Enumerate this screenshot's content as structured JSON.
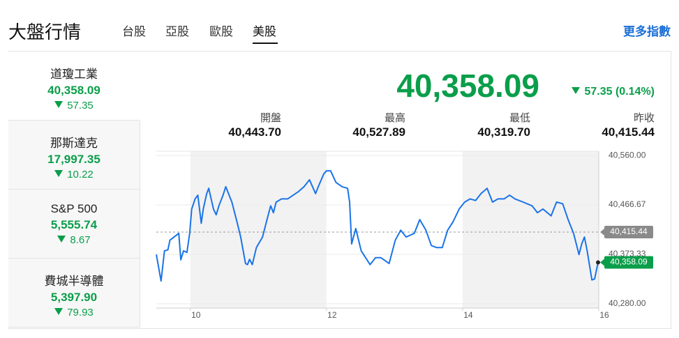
{
  "header": {
    "title": "大盤行情",
    "tabs": [
      "台股",
      "亞股",
      "歐股",
      "美股"
    ],
    "active_tab": 3,
    "more": "更多指數"
  },
  "indices": [
    {
      "name": "道瓊工業",
      "value": "40,358.09",
      "change": "57.35"
    },
    {
      "name": "那斯達克",
      "value": "17,997.35",
      "change": "10.22"
    },
    {
      "name": "S&P 500",
      "value": "5,555.74",
      "change": "8.67"
    },
    {
      "name": "費城半導體",
      "value": "5,397.90",
      "change": "79.93"
    }
  ],
  "selected_index": 0,
  "quote": {
    "price": "40,358.09",
    "change": "57.35 (0.14%)",
    "stats": [
      {
        "label": "開盤",
        "value": "40,443.70"
      },
      {
        "label": "最高",
        "value": "40,527.89"
      },
      {
        "label": "最低",
        "value": "40,319.70"
      },
      {
        "label": "昨收",
        "value": "40,415.44"
      }
    ]
  },
  "chart_data": {
    "type": "line",
    "x": [
      9.5,
      9.57,
      9.62,
      9.67,
      9.7,
      9.76,
      9.83,
      9.86,
      9.9,
      9.95,
      9.99,
      10.02,
      10.07,
      10.11,
      10.16,
      10.19,
      10.24,
      10.27,
      10.34,
      10.38,
      10.42,
      10.48,
      10.52,
      10.61,
      10.69,
      10.74,
      10.81,
      10.84,
      10.87,
      10.91,
      10.97,
      11.06,
      11.14,
      11.18,
      11.22,
      11.26,
      11.34,
      11.43,
      11.51,
      11.59,
      11.67,
      11.75,
      11.84,
      11.88,
      11.96,
      12.0,
      12.06,
      12.14,
      12.23,
      12.31,
      12.34,
      12.37,
      12.43,
      12.51,
      12.59,
      12.64,
      12.72,
      12.8,
      12.92,
      13.01,
      13.09,
      13.17,
      13.29,
      13.37,
      13.46,
      13.54,
      13.62,
      13.7,
      13.78,
      13.86,
      13.95,
      14.03,
      14.11,
      14.19,
      14.27,
      14.36,
      14.44,
      14.52,
      14.61,
      14.69,
      14.77,
      14.89,
      15.02,
      15.1,
      15.18,
      15.3,
      15.38,
      15.47,
      15.55,
      15.63,
      15.71,
      15.75,
      15.79,
      15.83,
      15.9,
      15.94,
      15.99
    ],
    "series": [
      {
        "color": "#1a73e8",
        "values": [
          40373,
          40323,
          40380,
          40382,
          40400,
          40406,
          40413,
          40363,
          40380,
          40377,
          40413,
          40459,
          40478,
          40485,
          40432,
          40459,
          40488,
          40498,
          40459,
          40448,
          40465,
          40485,
          40501,
          40472,
          40432,
          40406,
          40356,
          40354,
          40364,
          40354,
          40386,
          40406,
          40446,
          40465,
          40452,
          40472,
          40478,
          40478,
          40485,
          40492,
          40501,
          40514,
          40488,
          40501,
          40525,
          40531,
          40531,
          40509,
          40501,
          40498,
          40472,
          40393,
          40422,
          40380,
          40364,
          40354,
          40367,
          40367,
          40356,
          40400,
          40419,
          40406,
          40413,
          40439,
          40419,
          40390,
          40386,
          40386,
          40419,
          40435,
          40459,
          40472,
          40478,
          40475,
          40488,
          40498,
          40472,
          40478,
          40478,
          40485,
          40478,
          40472,
          40465,
          40452,
          40459,
          40446,
          40472,
          40469,
          40439,
          40413,
          40373,
          40393,
          40406,
          40380,
          40325,
          40327,
          40358
        ]
      }
    ],
    "xlim": [
      9.5,
      16
    ],
    "xticks": [
      10,
      12,
      14,
      16
    ],
    "ylim": [
      40272,
      40568
    ],
    "yticks": [
      {
        "value": 40280,
        "label": "40,280.00"
      },
      {
        "value": 40373.33,
        "label": "40,373.33"
      },
      {
        "value": 40466.67,
        "label": "40,466.67"
      },
      {
        "value": 40560,
        "label": "40,560.00"
      }
    ],
    "ref_line": {
      "value": 40415.44,
      "label": "40,415.44"
    },
    "last": {
      "value": 40358.09,
      "label": "40,358.09"
    }
  }
}
